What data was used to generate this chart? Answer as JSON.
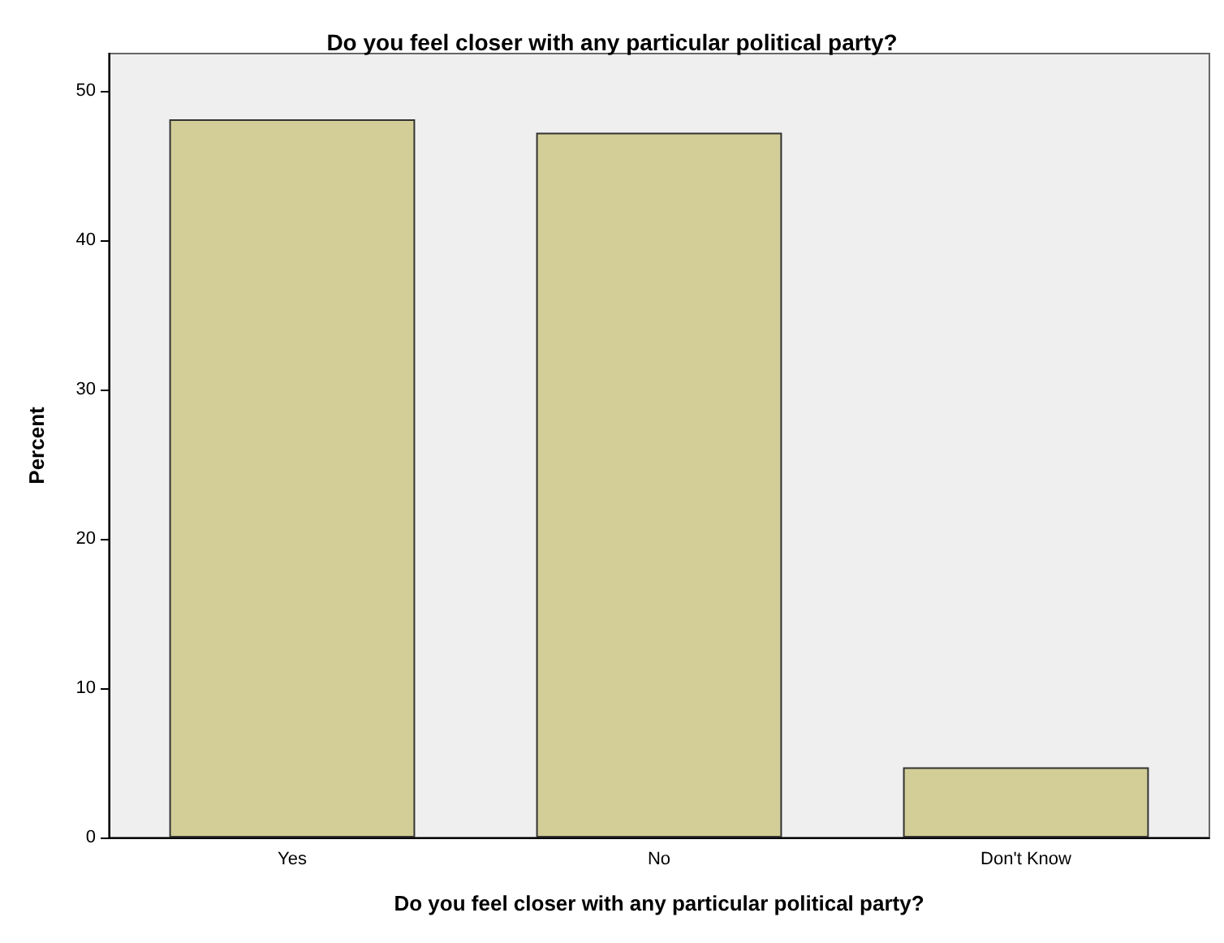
{
  "chart_data": {
    "type": "bar",
    "title": "Do you feel closer with any particular political party?",
    "xlabel": "Do you feel closer with any particular political party?",
    "ylabel": "Percent",
    "categories": [
      "Yes",
      "No",
      "Don't Know"
    ],
    "values": [
      48.1,
      47.2,
      4.7
    ],
    "color": "#d3ce97",
    "ylim": [
      0,
      52.5
    ],
    "yticks": [
      0,
      10,
      20,
      30,
      40,
      50
    ],
    "grid": false
  }
}
